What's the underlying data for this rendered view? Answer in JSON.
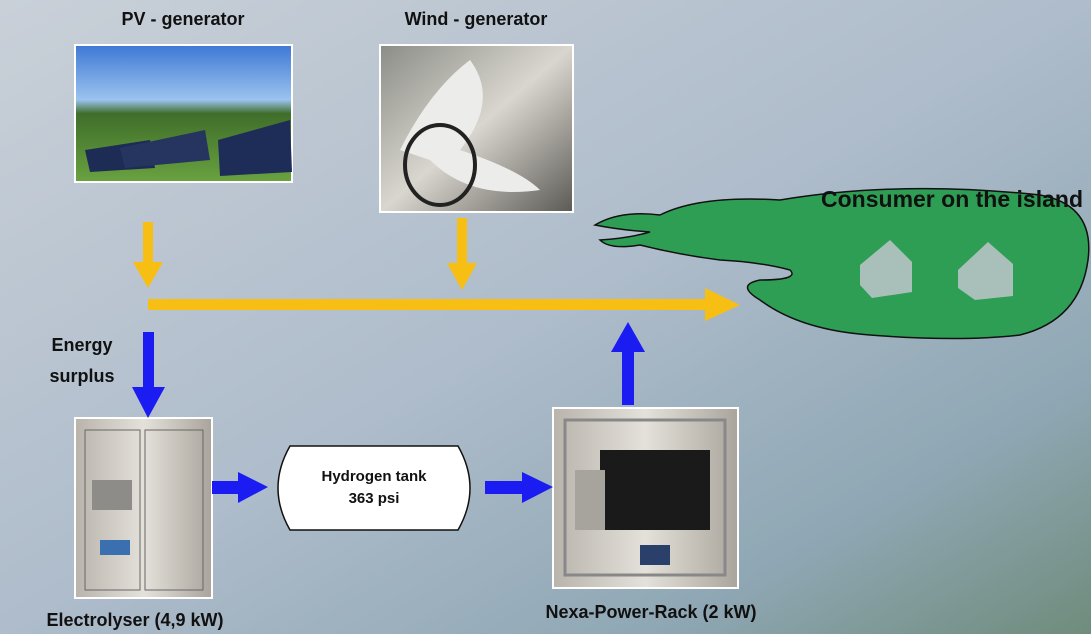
{
  "nodes": [
    {
      "label": "PV - generator"
    },
    {
      "label": "Wind - generator"
    },
    {
      "label": "Consumer on the island"
    },
    {
      "lines": [
        "Energy",
        "surplus"
      ]
    },
    {
      "lines": [
        "Hydrogen tank",
        "363 psi"
      ]
    },
    {
      "label": "Electrolyser (4,9 kW)"
    },
    {
      "label": "Nexa-Power-Rack (2 kW)"
    }
  ]
}
